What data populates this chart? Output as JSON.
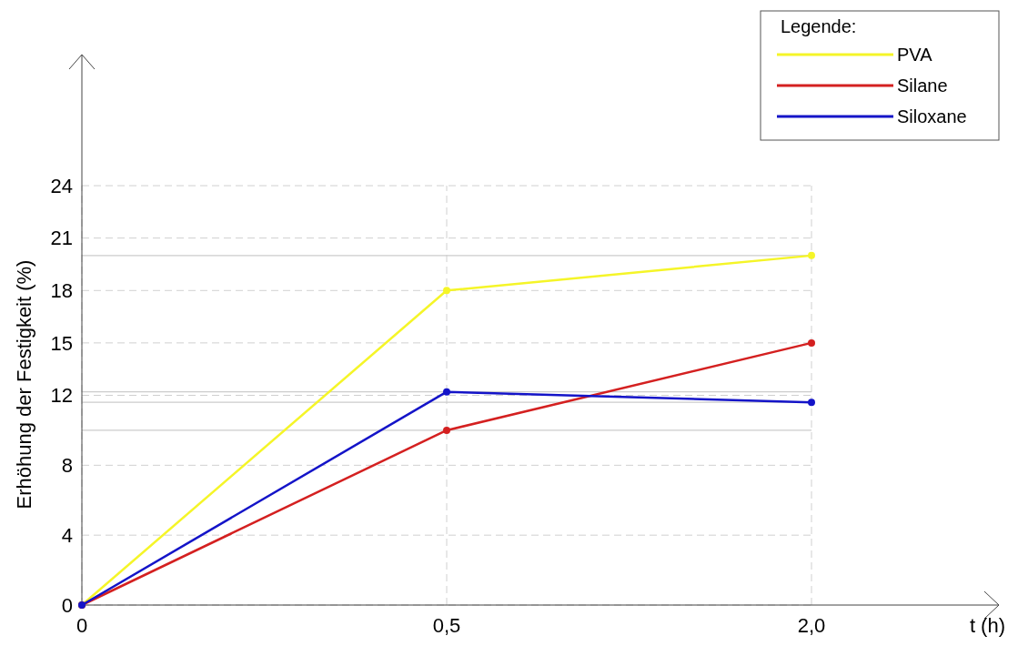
{
  "chart_data": {
    "type": "line",
    "annotations": [
      "t (h)"
    ],
    "ylabel": "Erhöhung der Festigkeit (%)",
    "legend_title": "Legende:",
    "categories": [
      "0",
      "0,5",
      "2,0"
    ],
    "series": [
      {
        "name": "PVA",
        "color": "#f5f528",
        "values": [
          0,
          18,
          20
        ]
      },
      {
        "name": "Silane",
        "color": "#d42020",
        "values": [
          0,
          10,
          15
        ]
      },
      {
        "name": "Siloxane",
        "color": "#1414c8",
        "values": [
          0,
          12.2,
          11.6
        ]
      }
    ],
    "ylim": [
      0,
      31.5
    ],
    "yticks": [
      0,
      4,
      8,
      12,
      15,
      18,
      21,
      24
    ],
    "grid": true,
    "legend": "top right",
    "marker": "circle",
    "line_style": "solid",
    "ref_lines": [
      {
        "axis": "y",
        "value": 20,
        "color": "#cccccc"
      },
      {
        "axis": "y",
        "value": 12.2,
        "color": "#cccccc"
      },
      {
        "axis": "y",
        "value": 11.6,
        "color": "#cccccc"
      },
      {
        "axis": "y",
        "value": 10,
        "color": "#cccccc"
      }
    ]
  }
}
